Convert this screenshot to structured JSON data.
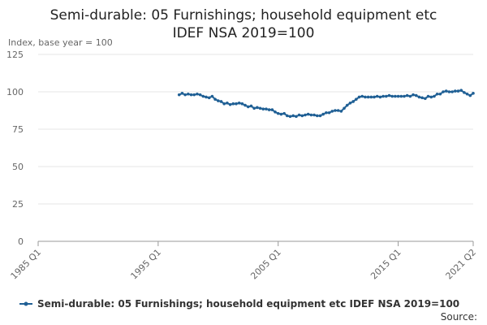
{
  "chart_data": {
    "type": "line",
    "title": "Semi-durable: 05 Furnishings; household equipment etc",
    "subtitle": "IDEF NSA 2019=100",
    "y_label": "Index, base year = 100",
    "source": "Source:",
    "categories": [
      "1985 Q1",
      null,
      null,
      null,
      null,
      null,
      null,
      null,
      null,
      null,
      null,
      null,
      null,
      null,
      null,
      null,
      null,
      null,
      null,
      null,
      null,
      null,
      null,
      null,
      null,
      null,
      null,
      null,
      null,
      null,
      null,
      null,
      null,
      null,
      null,
      null,
      null,
      null,
      null,
      null,
      "1995 Q1",
      null,
      null,
      null,
      null,
      null,
      null,
      null,
      null,
      null,
      null,
      null,
      null,
      null,
      null,
      null,
      null,
      null,
      null,
      null,
      null,
      null,
      null,
      null,
      null,
      null,
      null,
      null,
      null,
      null,
      null,
      null,
      null,
      null,
      null,
      null,
      null,
      null,
      null,
      null,
      "2005 Q1",
      null,
      null,
      null,
      null,
      null,
      null,
      null,
      null,
      null,
      null,
      null,
      null,
      null,
      null,
      null,
      null,
      null,
      null,
      null,
      null,
      null,
      null,
      null,
      null,
      null,
      null,
      null,
      null,
      null,
      null,
      null,
      null,
      null,
      null,
      null,
      null,
      null,
      null,
      null,
      "2015 Q1",
      null,
      null,
      null,
      null,
      null,
      null,
      null,
      null,
      null,
      null,
      null,
      null,
      null,
      null,
      null,
      null,
      null,
      null,
      null,
      null,
      null,
      null,
      null,
      null,
      "2021 Q2"
    ],
    "series": [
      {
        "name": "Semi-durable: 05 Furnishings; household equipment etc IDEF NSA 2019=100",
        "color": "#206095",
        "values": [
          null,
          null,
          null,
          null,
          null,
          null,
          null,
          null,
          null,
          null,
          null,
          null,
          null,
          null,
          null,
          null,
          null,
          null,
          null,
          null,
          null,
          null,
          null,
          null,
          null,
          null,
          null,
          null,
          null,
          null,
          null,
          null,
          null,
          null,
          null,
          null,
          null,
          null,
          null,
          null,
          null,
          null,
          null,
          null,
          null,
          null,
          null,
          98,
          99,
          98,
          98.5,
          98,
          98,
          98.5,
          98,
          97,
          96.5,
          96,
          97,
          95,
          94,
          93.5,
          92,
          92.5,
          91.5,
          92,
          92,
          92.5,
          92,
          91,
          90,
          90.5,
          89,
          89.5,
          89,
          88.5,
          88.5,
          88,
          88,
          86.5,
          85.5,
          85,
          85.5,
          84,
          83.5,
          84,
          83.5,
          84.5,
          84,
          84.5,
          85,
          84.5,
          84.5,
          84,
          84,
          85,
          86,
          86,
          87,
          87.5,
          87.5,
          87,
          89,
          91,
          92.5,
          93.5,
          95,
          96.5,
          97,
          96.5,
          96.5,
          96.5,
          96.5,
          97,
          96.5,
          97,
          97,
          97.5,
          97,
          97,
          97,
          97,
          97,
          97.5,
          97,
          98,
          97.5,
          96.5,
          96,
          95.5,
          97,
          96.5,
          97,
          98.5,
          98.5,
          100,
          100.5,
          100,
          100,
          100.5,
          100.5,
          101,
          99.5,
          98.5,
          97.5,
          99
        ]
      }
    ],
    "ylim": [
      0,
      125
    ],
    "yticks": [
      0,
      25,
      50,
      75,
      100,
      125
    ],
    "grid": true
  }
}
